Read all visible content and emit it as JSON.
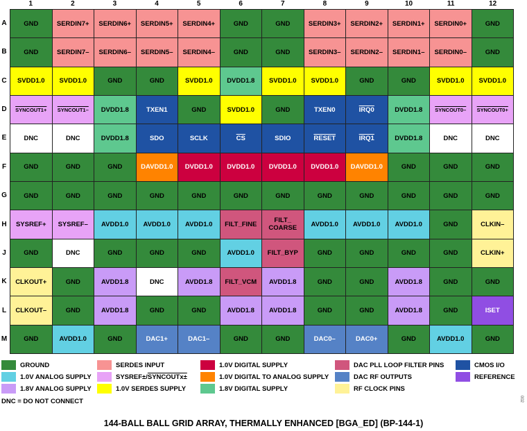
{
  "columns": [
    "1",
    "2",
    "3",
    "4",
    "5",
    "6",
    "7",
    "8",
    "9",
    "10",
    "11",
    "12"
  ],
  "rows": [
    "A",
    "B",
    "C",
    "D",
    "E",
    "F",
    "G",
    "H",
    "J",
    "K",
    "L",
    "M"
  ],
  "types": {
    "gnd": {
      "bg": "#348a3b",
      "fg": "#000000"
    },
    "serdes": {
      "bg": "#f79393",
      "fg": "#000000"
    },
    "svdd": {
      "bg": "#ffff00",
      "fg": "#000000"
    },
    "sysref": {
      "bg": "#e8a3f7",
      "fg": "#000000"
    },
    "dvdd18": {
      "bg": "#5ec88f",
      "fg": "#000000"
    },
    "cmos": {
      "bg": "#1f52a3",
      "fg": "#ffffff"
    },
    "dnc": {
      "bg": "#ffffff",
      "fg": "#000000"
    },
    "dvdd10": {
      "bg": "#cc003f",
      "fg": "#ffffff"
    },
    "davdd": {
      "bg": "#ff8300",
      "fg": "#ffffff"
    },
    "avdd10": {
      "bg": "#62d0e3",
      "fg": "#000000"
    },
    "avdd18": {
      "bg": "#c99bf7",
      "fg": "#000000"
    },
    "filt": {
      "bg": "#d0567d",
      "fg": "#000000"
    },
    "dacrf": {
      "bg": "#5582c6",
      "fg": "#ffffff"
    },
    "clk": {
      "bg": "#fff297",
      "fg": "#000000"
    },
    "ref": {
      "bg": "#904ee3",
      "fg": "#ffffff"
    }
  },
  "grid": [
    [
      [
        "GND",
        "gnd"
      ],
      [
        "SERDIN7+",
        "serdes"
      ],
      [
        "SERDIN6+",
        "serdes"
      ],
      [
        "SERDIN5+",
        "serdes"
      ],
      [
        "SERDIN4+",
        "serdes"
      ],
      [
        "GND",
        "gnd"
      ],
      [
        "GND",
        "gnd"
      ],
      [
        "SERDIN3+",
        "serdes"
      ],
      [
        "SERDIN2+",
        "serdes"
      ],
      [
        "SERDIN1+",
        "serdes"
      ],
      [
        "SERDIN0+",
        "serdes"
      ],
      [
        "GND",
        "gnd"
      ]
    ],
    [
      [
        "GND",
        "gnd"
      ],
      [
        "SERDIN7–",
        "serdes"
      ],
      [
        "SERDIN6–",
        "serdes"
      ],
      [
        "SERDIN5–",
        "serdes"
      ],
      [
        "SERDIN4–",
        "serdes"
      ],
      [
        "GND",
        "gnd"
      ],
      [
        "GND",
        "gnd"
      ],
      [
        "SERDIN3–",
        "serdes"
      ],
      [
        "SERDIN2–",
        "serdes"
      ],
      [
        "SERDIN1–",
        "serdes"
      ],
      [
        "SERDIN0–",
        "serdes"
      ],
      [
        "GND",
        "gnd"
      ]
    ],
    [
      [
        "SVDD1.0",
        "svdd"
      ],
      [
        "SVDD1.0",
        "svdd"
      ],
      [
        "GND",
        "gnd"
      ],
      [
        "GND",
        "gnd"
      ],
      [
        "SVDD1.0",
        "svdd"
      ],
      [
        "DVDD1.8",
        "dvdd18"
      ],
      [
        "SVDD1.0",
        "svdd"
      ],
      [
        "SVDD1.0",
        "svdd"
      ],
      [
        "GND",
        "gnd"
      ],
      [
        "GND",
        "gnd"
      ],
      [
        "SVDD1.0",
        "svdd"
      ],
      [
        "SVDD1.0",
        "svdd"
      ]
    ],
    [
      [
        "SYNCOUT1+",
        "sysref",
        true
      ],
      [
        "SYNCOUT1–",
        "sysref",
        true
      ],
      [
        "DVDD1.8",
        "dvdd18"
      ],
      [
        "TXEN1",
        "cmos"
      ],
      [
        "GND",
        "gnd"
      ],
      [
        "SVDD1.0",
        "svdd"
      ],
      [
        "GND",
        "gnd"
      ],
      [
        "TXEN0",
        "cmos"
      ],
      [
        "IRQ0",
        "cmos",
        true
      ],
      [
        "DVDD1.8",
        "dvdd18"
      ],
      [
        "SYNCOUT0–",
        "sysref",
        true
      ],
      [
        "SYNCOUT0+",
        "sysref",
        true
      ]
    ],
    [
      [
        "DNC",
        "dnc"
      ],
      [
        "DNC",
        "dnc"
      ],
      [
        "DVDD1.8",
        "dvdd18"
      ],
      [
        "SDO",
        "cmos"
      ],
      [
        "SCLK",
        "cmos"
      ],
      [
        "CS",
        "cmos",
        true
      ],
      [
        "SDIO",
        "cmos"
      ],
      [
        "RESET",
        "cmos",
        true
      ],
      [
        "IRQ1",
        "cmos",
        true
      ],
      [
        "DVDD1.8",
        "dvdd18"
      ],
      [
        "DNC",
        "dnc"
      ],
      [
        "DNC",
        "dnc"
      ]
    ],
    [
      [
        "GND",
        "gnd"
      ],
      [
        "GND",
        "gnd"
      ],
      [
        "GND",
        "gnd"
      ],
      [
        "DAVDD1.0",
        "davdd"
      ],
      [
        "DVDD1.0",
        "dvdd10"
      ],
      [
        "DVDD1.0",
        "dvdd10"
      ],
      [
        "DVDD1.0",
        "dvdd10"
      ],
      [
        "DVDD1.0",
        "dvdd10"
      ],
      [
        "DAVDD1.0",
        "davdd"
      ],
      [
        "GND",
        "gnd"
      ],
      [
        "GND",
        "gnd"
      ],
      [
        "GND",
        "gnd"
      ]
    ],
    [
      [
        "GND",
        "gnd"
      ],
      [
        "GND",
        "gnd"
      ],
      [
        "GND",
        "gnd"
      ],
      [
        "GND",
        "gnd"
      ],
      [
        "GND",
        "gnd"
      ],
      [
        "GND",
        "gnd"
      ],
      [
        "GND",
        "gnd"
      ],
      [
        "GND",
        "gnd"
      ],
      [
        "GND",
        "gnd"
      ],
      [
        "GND",
        "gnd"
      ],
      [
        "GND",
        "gnd"
      ],
      [
        "GND",
        "gnd"
      ]
    ],
    [
      [
        "SYSREF+",
        "sysref"
      ],
      [
        "SYSREF–",
        "sysref"
      ],
      [
        "AVDD1.0",
        "avdd10"
      ],
      [
        "AVDD1.0",
        "avdd10"
      ],
      [
        "AVDD1.0",
        "avdd10"
      ],
      [
        "FILT_FINE",
        "filt"
      ],
      [
        "FILT_\nCOARSE",
        "filt"
      ],
      [
        "AVDD1.0",
        "avdd10"
      ],
      [
        "AVDD1.0",
        "avdd10"
      ],
      [
        "AVDD1.0",
        "avdd10"
      ],
      [
        "GND",
        "gnd"
      ],
      [
        "CLKIN–",
        "clk"
      ]
    ],
    [
      [
        "GND",
        "gnd"
      ],
      [
        "DNC",
        "dnc"
      ],
      [
        "GND",
        "gnd"
      ],
      [
        "GND",
        "gnd"
      ],
      [
        "GND",
        "gnd"
      ],
      [
        "AVDD1.0",
        "avdd10"
      ],
      [
        "FILT_BYP",
        "filt"
      ],
      [
        "GND",
        "gnd"
      ],
      [
        "GND",
        "gnd"
      ],
      [
        "GND",
        "gnd"
      ],
      [
        "GND",
        "gnd"
      ],
      [
        "CLKIN+",
        "clk"
      ]
    ],
    [
      [
        "CLKOUT+",
        "clk"
      ],
      [
        "GND",
        "gnd"
      ],
      [
        "AVDD1.8",
        "avdd18"
      ],
      [
        "DNC",
        "dnc"
      ],
      [
        "AVDD1.8",
        "avdd18"
      ],
      [
        "FILT_VCM",
        "filt"
      ],
      [
        "AVDD1.8",
        "avdd18"
      ],
      [
        "GND",
        "gnd"
      ],
      [
        "GND",
        "gnd"
      ],
      [
        "AVDD1.8",
        "avdd18"
      ],
      [
        "GND",
        "gnd"
      ],
      [
        "GND",
        "gnd"
      ]
    ],
    [
      [
        "CLKOUT–",
        "clk"
      ],
      [
        "GND",
        "gnd"
      ],
      [
        "AVDD1.8",
        "avdd18"
      ],
      [
        "GND",
        "gnd"
      ],
      [
        "GND",
        "gnd"
      ],
      [
        "AVDD1.8",
        "avdd18"
      ],
      [
        "AVDD1.8",
        "avdd18"
      ],
      [
        "GND",
        "gnd"
      ],
      [
        "GND",
        "gnd"
      ],
      [
        "AVDD1.8",
        "avdd18"
      ],
      [
        "GND",
        "gnd"
      ],
      [
        "ISET",
        "ref"
      ]
    ],
    [
      [
        "GND",
        "gnd"
      ],
      [
        "AVDD1.0",
        "avdd10"
      ],
      [
        "GND",
        "gnd"
      ],
      [
        "DAC1+",
        "dacrf"
      ],
      [
        "DAC1–",
        "dacrf"
      ],
      [
        "GND",
        "gnd"
      ],
      [
        "GND",
        "gnd"
      ],
      [
        "DAC0–",
        "dacrf"
      ],
      [
        "DAC0+",
        "dacrf"
      ],
      [
        "GND",
        "gnd"
      ],
      [
        "AVDD1.0",
        "avdd10"
      ],
      [
        "GND",
        "gnd"
      ]
    ]
  ],
  "legend": [
    {
      "label": "GROUND",
      "type": "gnd"
    },
    {
      "label": "1.0V ANALOG SUPPLY",
      "type": "avdd10"
    },
    {
      "label": "1.8V ANALOG SUPPLY",
      "type": "avdd18"
    },
    {
      "label": "SERDES INPUT",
      "type": "serdes"
    },
    {
      "label": "SYSREF±/",
      "label_overline": "SYNCOUTx±",
      "type": "sysref"
    },
    {
      "label": "1.0V SERDES SUPPLY",
      "type": "svdd"
    },
    {
      "label": "1.0V DIGITAL SUPPLY",
      "type": "dvdd10"
    },
    {
      "label": "1.0V DIGITAL TO ANALOG SUPPLY",
      "type": "davdd"
    },
    {
      "label": "1.8V DIGITAL SUPPLY",
      "type": "dvdd18"
    },
    {
      "label": "DAC PLL LOOP FILTER PINS",
      "type": "filt"
    },
    {
      "label": "DAC RF OUTPUTS",
      "type": "dacrf"
    },
    {
      "label": "RF CLOCK PINS",
      "type": "clk"
    },
    {
      "label": "CMOS I/O",
      "type": "cmos"
    },
    {
      "label": "REFERENCE",
      "type": "ref"
    }
  ],
  "dnc_note": "DNC = DO NOT CONNECT",
  "figure_number": "002",
  "title": "144-BALL BALL GRID ARRAY, THERMALLY ENHANCED [BGA_ED] (BP-144-1)"
}
